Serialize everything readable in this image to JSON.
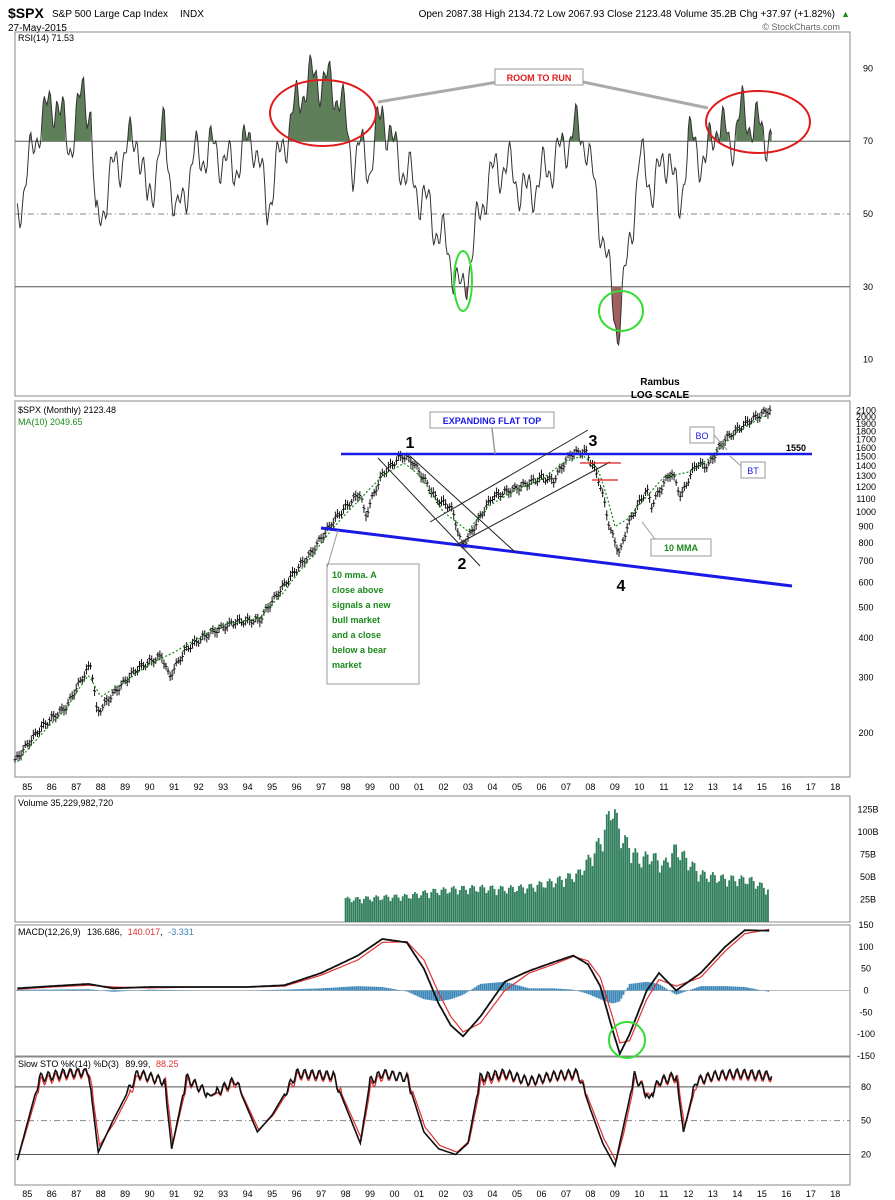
{
  "header": {
    "symbol": "$SPX",
    "name": "S&P 500 Large Cap Index",
    "exchange": "INDX",
    "date": "27-May-2015",
    "quote": "Open 2087.38  High 2134.72  Low 2067.93  Close 2123.48  Volume 35.2B  Chg +37.97 (+1.82%)",
    "quote_arrow": "▲",
    "watermark": "© StockCharts.com"
  },
  "colors": {
    "rsi_fill_high": "#5f7f5a",
    "rsi_fill_low": "#a06060",
    "volume": "#2e7d5b",
    "macd_hist": "#3a86b8",
    "signal": "#e03030",
    "annot_blue": "#1a1ae6",
    "annot_green": "#1a8a1a",
    "annot_red": "#e01b1b",
    "ellipse_green": "#33dd33"
  },
  "x_axis": {
    "labels": [
      "85",
      "86",
      "87",
      "88",
      "89",
      "90",
      "91",
      "92",
      "93",
      "94",
      "95",
      "96",
      "97",
      "98",
      "99",
      "00",
      "01",
      "02",
      "03",
      "04",
      "05",
      "06",
      "07",
      "08",
      "09",
      "10",
      "11",
      "12",
      "13",
      "14",
      "15",
      "16",
      "17",
      "18"
    ]
  },
  "chart_data": [
    {
      "panel": "rsi",
      "type": "area",
      "legend": "RSI(14) 71.53",
      "ylim": [
        0,
        100
      ],
      "yticks": [
        90,
        70,
        50,
        30,
        10
      ],
      "levels": [
        70,
        50,
        30
      ],
      "x": [
        1984.6,
        1985.5,
        1986.2,
        1986.7,
        1987.3,
        1987.6,
        1987.8,
        1988.5,
        1989.5,
        1989.9,
        1990.6,
        1991.1,
        1991.8,
        1992.6,
        1993.4,
        1994.2,
        1994.8,
        1995.4,
        1996.2,
        1996.8,
        1997.4,
        1997.8,
        1998.3,
        1998.6,
        1999.0,
        1999.5,
        2000.0,
        2000.6,
        2001.2,
        2001.8,
        2002.3,
        2002.55,
        2002.75,
        2003.1,
        2003.8,
        2004.5,
        2005.4,
        2006.2,
        2006.8,
        2007.3,
        2007.8,
        2008.2,
        2008.6,
        2008.85,
        2009.1,
        2009.5,
        2010.0,
        2010.6,
        2011.2,
        2011.6,
        2012.0,
        2012.7,
        2013.2,
        2013.7,
        2014.2,
        2014.6,
        2015.0,
        2015.4
      ],
      "values": [
        50,
        75,
        82,
        68,
        84,
        78,
        45,
        62,
        72,
        52,
        73,
        48,
        65,
        68,
        62,
        72,
        52,
        68,
        84,
        88,
        85,
        82,
        64,
        68,
        63,
        79,
        67,
        60,
        54,
        45,
        38,
        31,
        27,
        38,
        59,
        64,
        55,
        62,
        67,
        73,
        71,
        55,
        41,
        28,
        18,
        36,
        65,
        57,
        68,
        50,
        71,
        64,
        76,
        69,
        78,
        75,
        73,
        71
      ]
    },
    {
      "panel": "price",
      "type": "line",
      "legend": "$SPX (Monthly) 2123.48",
      "series": [
        {
          "name": "MA(10) 2049.65",
          "x": [
            1984.6,
            1985.5,
            1986.6,
            1987.5,
            1988.0,
            1989.0,
            1990.0,
            1991.0,
            1992.0,
            1993.0,
            1994.5,
            1995.5,
            1996.6,
            1997.6,
            1998.6,
            1999.6,
            2000.4,
            2001.0,
            2002.0,
            2003.0,
            2003.8,
            2005.0,
            2006.0,
            2007.0,
            2007.7,
            2008.3,
            2009.0,
            2009.5,
            2010.3,
            2011.0,
            2012.0,
            2013.0,
            2014.0,
            2015.3
          ],
          "values": [
            162,
            195,
            238,
            305,
            260,
            290,
            330,
            360,
            400,
            440,
            462,
            560,
            720,
            910,
            1100,
            1320,
            1430,
            1310,
            1000,
            870,
            1040,
            1180,
            1270,
            1450,
            1510,
            1370,
            900,
            950,
            1120,
            1290,
            1340,
            1500,
            1800,
            2050
          ]
        }
      ],
      "ohlc_path_x": [
        1984.5,
        1985.5,
        1986.6,
        1987.6,
        1987.85,
        1988.5,
        1989.5,
        1990.5,
        1990.8,
        1991.5,
        1992.5,
        1993.5,
        1994.5,
        1995.5,
        1996.6,
        1997.6,
        1998.6,
        1998.8,
        1999.5,
        2000.3,
        2000.7,
        2001.7,
        2002.3,
        2002.75,
        2003.1,
        2004.0,
        2005.0,
        2006.0,
        2006.5,
        2007.2,
        2007.8,
        2008.3,
        2008.8,
        2009.2,
        2009.5,
        2010.3,
        2010.5,
        2011.3,
        2011.7,
        2012.3,
        2012.8,
        2013.5,
        2014.5,
        2015.4
      ],
      "ohlc_path_y": [
        163,
        205,
        242,
        330,
        230,
        265,
        320,
        350,
        300,
        370,
        415,
        450,
        455,
        590,
        740,
        960,
        1150,
        960,
        1320,
        1510,
        1450,
        1100,
        1040,
        780,
        850,
        1120,
        1190,
        1290,
        1260,
        1530,
        1560,
        1300,
        880,
        735,
        900,
        1180,
        1050,
        1340,
        1120,
        1420,
        1400,
        1700,
        1950,
        2123
      ],
      "yticks": [
        2100,
        2000,
        1900,
        1800,
        1700,
        1600,
        1500,
        1400,
        1300,
        1200,
        1100,
        1000,
        900,
        800,
        700,
        600,
        500,
        400,
        300,
        200
      ],
      "log_scale": true,
      "note": "Rambus\nLOG SCALE",
      "annotations": {
        "flat_top_label": "EXPANDING FLAT TOP",
        "level": "1550",
        "pivots": [
          "1",
          "2",
          "3",
          "4"
        ],
        "bo": "BO",
        "bt": "BT",
        "mma_label": "10 MMA",
        "comment": "10 mma. A close above signals a new bull market and a close below a bear market",
        "run_label": "ROOM TO RUN"
      }
    },
    {
      "panel": "volume",
      "type": "bar",
      "legend": "Volume 35,229,982,720",
      "yticks": [
        "125B",
        "100B",
        "75B",
        "50B",
        "25B"
      ],
      "x": [
        1998.5,
        1999.5,
        2000.5,
        2001.5,
        2002.5,
        2003.5,
        2004.5,
        2005.5,
        2006.5,
        2007.5,
        2008.0,
        2008.5,
        2008.9,
        2009.2,
        2009.5,
        2010.0,
        2010.5,
        2011.0,
        2011.5,
        2012.5,
        2013.5,
        2014.5,
        2015.3
      ],
      "values": [
        25,
        27,
        28,
        33,
        36,
        37,
        36,
        38,
        44,
        52,
        70,
        92,
        128,
        96,
        85,
        68,
        72,
        62,
        80,
        52,
        47,
        46,
        35
      ]
    },
    {
      "panel": "macd",
      "type": "line",
      "legend_name": "MACD(12,26,9)",
      "legend_values": [
        "136.686",
        "140.017",
        "-3.331"
      ],
      "ylim": [
        -150,
        150
      ],
      "yticks": [
        150,
        100,
        50,
        0,
        -50,
        -100,
        -150
      ],
      "x": [
        1984.6,
        1986.0,
        1987.5,
        1988.5,
        1990.0,
        1992.0,
        1994.0,
        1995.5,
        1997.0,
        1998.5,
        1999.5,
        2000.5,
        2001.2,
        2001.8,
        2002.3,
        2002.8,
        2003.5,
        2004.5,
        2005.5,
        2006.5,
        2007.3,
        2007.9,
        2008.4,
        2008.9,
        2009.2,
        2009.6,
        2010.3,
        2010.8,
        2011.5,
        2012.5,
        2013.5,
        2014.3,
        2015.3
      ],
      "series": [
        {
          "name": "MACD",
          "values": [
            5,
            10,
            15,
            5,
            8,
            8,
            8,
            12,
            40,
            80,
            118,
            110,
            50,
            -30,
            -80,
            -105,
            -60,
            20,
            45,
            65,
            80,
            60,
            10,
            -90,
            -145,
            -100,
            0,
            40,
            0,
            40,
            100,
            138,
            137
          ]
        },
        {
          "name": "Signal",
          "values": [
            3,
            8,
            12,
            8,
            6,
            8,
            8,
            10,
            35,
            70,
            110,
            112,
            70,
            -5,
            -60,
            -95,
            -75,
            0,
            40,
            60,
            78,
            68,
            30,
            -60,
            -120,
            -115,
            -20,
            25,
            10,
            30,
            90,
            130,
            140
          ]
        },
        {
          "name": "Histogram",
          "values": [
            2,
            2,
            3,
            -3,
            2,
            0,
            0,
            2,
            5,
            10,
            8,
            -2,
            -20,
            -25,
            -20,
            -10,
            15,
            20,
            5,
            5,
            2,
            -8,
            -20,
            -30,
            -25,
            15,
            20,
            15,
            -10,
            10,
            10,
            8,
            -3
          ]
        }
      ]
    },
    {
      "panel": "stochastic",
      "type": "line",
      "legend_name": "Slow STO %K(14) %D(3)",
      "legend_values": [
        "89.99",
        "88.25"
      ],
      "ylim": [
        0,
        100
      ],
      "yticks": [
        80,
        50,
        20
      ],
      "levels": [
        80,
        50,
        20
      ],
      "x": [
        1984.6,
        1985.5,
        1986.5,
        1987.5,
        1987.9,
        1988.5,
        1989.5,
        1990.6,
        1990.9,
        1991.5,
        1992.5,
        1993.5,
        1994.4,
        1995.0,
        1996.0,
        1997.5,
        1998.6,
        1999.0,
        1999.5,
        2000.5,
        2001.2,
        2001.8,
        2002.5,
        2003.0,
        2003.5,
        2004.5,
        2005.5,
        2006.5,
        2007.5,
        2008.0,
        2008.5,
        2009.0,
        2009.3,
        2009.8,
        2010.4,
        2010.8,
        2011.5,
        2011.8,
        2012.3,
        2013.0,
        2014.0,
        2015.4
      ],
      "series": [
        {
          "name": "%K",
          "values": [
            15,
            88,
            92,
            94,
            22,
            50,
            92,
            85,
            25,
            88,
            72,
            86,
            40,
            55,
            92,
            90,
            30,
            85,
            92,
            88,
            40,
            25,
            20,
            30,
            88,
            92,
            85,
            90,
            92,
            60,
            30,
            10,
            40,
            90,
            70,
            85,
            90,
            40,
            85,
            90,
            92,
            90
          ]
        },
        {
          "name": "%D",
          "values": [
            18,
            85,
            90,
            92,
            28,
            48,
            90,
            84,
            30,
            85,
            72,
            84,
            42,
            55,
            90,
            88,
            34,
            82,
            90,
            88,
            44,
            28,
            22,
            32,
            85,
            90,
            84,
            89,
            90,
            62,
            34,
            14,
            38,
            88,
            72,
            84,
            88,
            44,
            84,
            89,
            90,
            88
          ]
        }
      ]
    }
  ]
}
